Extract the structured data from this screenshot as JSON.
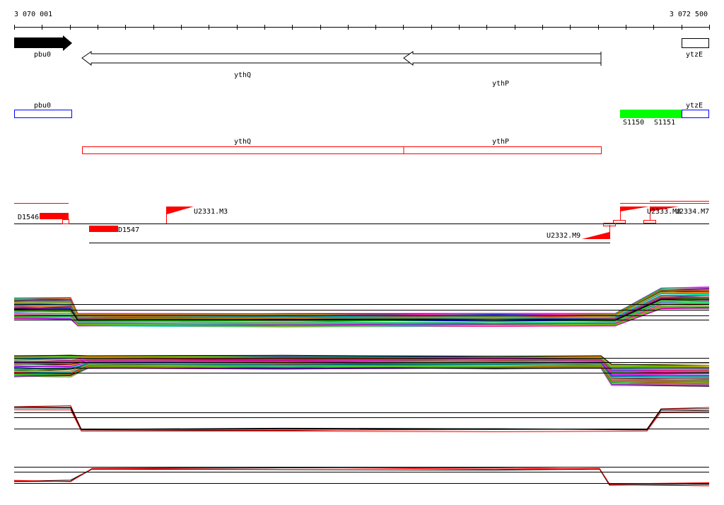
{
  "ruler": {
    "start_label": "3 070 001",
    "end_label": "3 072 500",
    "start": 3070001,
    "end": 3072500,
    "tick_step": 100
  },
  "genes": [
    {
      "name": "pbu0",
      "start": 3070001,
      "end": 3070210,
      "strand": "+",
      "style": "filled"
    },
    {
      "name": "ythQ",
      "start": 3070245,
      "end": 3071400,
      "strand": "-",
      "style": "open"
    },
    {
      "name": "ythP",
      "start": 3071400,
      "end": 3072113,
      "strand": "-",
      "style": "open"
    },
    {
      "name": "ytzE",
      "start": 3072400,
      "end": 3072500,
      "strand": "+",
      "style": "open"
    }
  ],
  "transcripts_top": [
    {
      "name": "pbu0",
      "color": "#0000ff"
    },
    {
      "name": "ytzE",
      "color": "#0000ff"
    }
  ],
  "green_segments": {
    "labels": [
      "S1150",
      "S1151"
    ],
    "color": "#00ff00"
  },
  "transcripts_bottom": [
    {
      "name": "ythQ",
      "color": "#ff0000"
    },
    {
      "name": "ythP",
      "color": "#ff0000"
    }
  ],
  "features": [
    {
      "label": "D1546"
    },
    {
      "label": "D1547"
    },
    {
      "label": "U2331.M3"
    },
    {
      "label": "U2332.M9"
    },
    {
      "label": "U2333.M8"
    },
    {
      "label": "U2334.M7"
    }
  ],
  "colors": {
    "accent": "#ff0000",
    "green": "#00ff00",
    "blue": "#0000ff"
  },
  "profile_colors": [
    "#ff0000",
    "#00cc00",
    "#0000ff",
    "#ff00ff",
    "#00cccc",
    "#ff8800",
    "#8800ff",
    "#888800",
    "#008888",
    "#ff0088",
    "#00ff88",
    "#000000",
    "#888888",
    "#cc6600",
    "#66cc00"
  ]
}
